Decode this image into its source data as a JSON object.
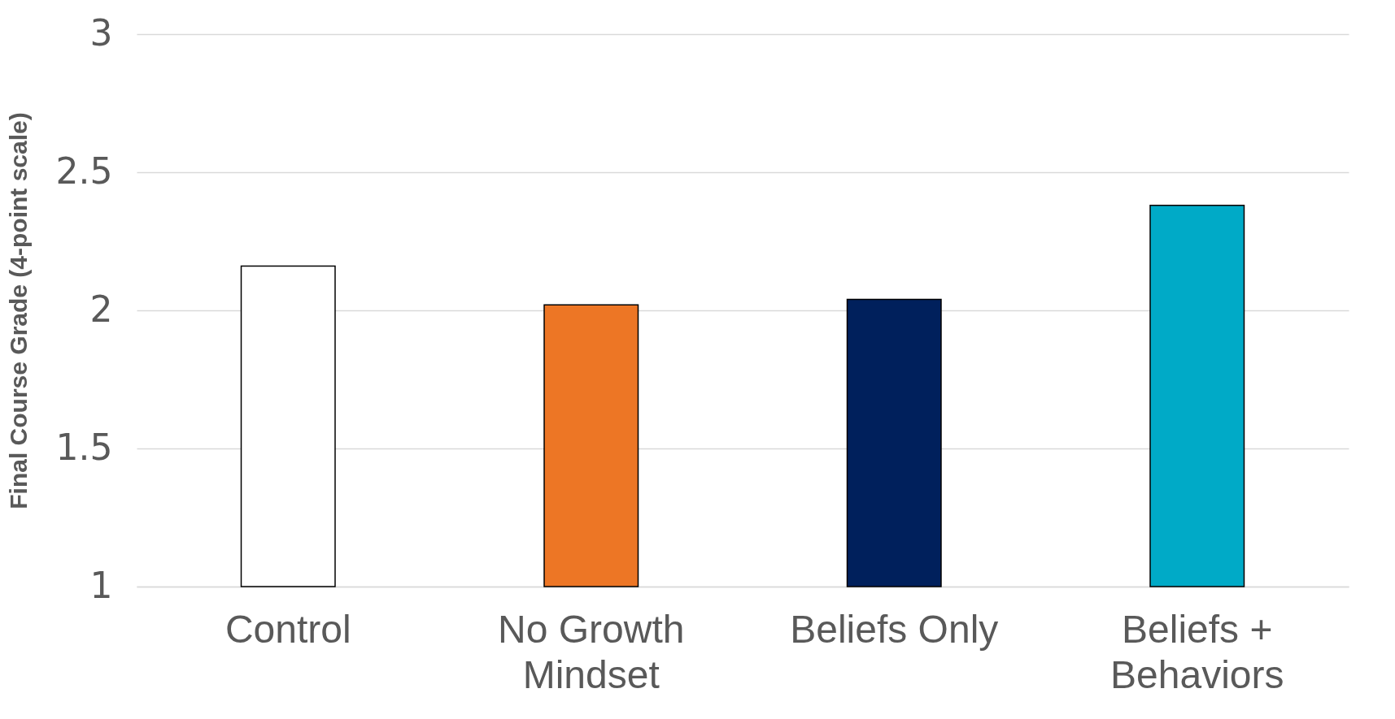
{
  "chart_data": {
    "type": "bar",
    "ylabel": "Final Course Grade (4-point scale)",
    "categories": [
      "Control",
      "No Growth Mindset",
      "Beliefs Only",
      "Beliefs + Behaviors"
    ],
    "values": [
      2.16,
      2.02,
      2.04,
      2.38
    ],
    "colors": [
      "#ffffff",
      "#ed7625",
      "#00205c",
      "#00aac7"
    ],
    "ylim": [
      1,
      3
    ],
    "yticks": [
      1,
      1.5,
      2,
      2.5,
      3
    ],
    "grid": "y",
    "legend": false
  }
}
